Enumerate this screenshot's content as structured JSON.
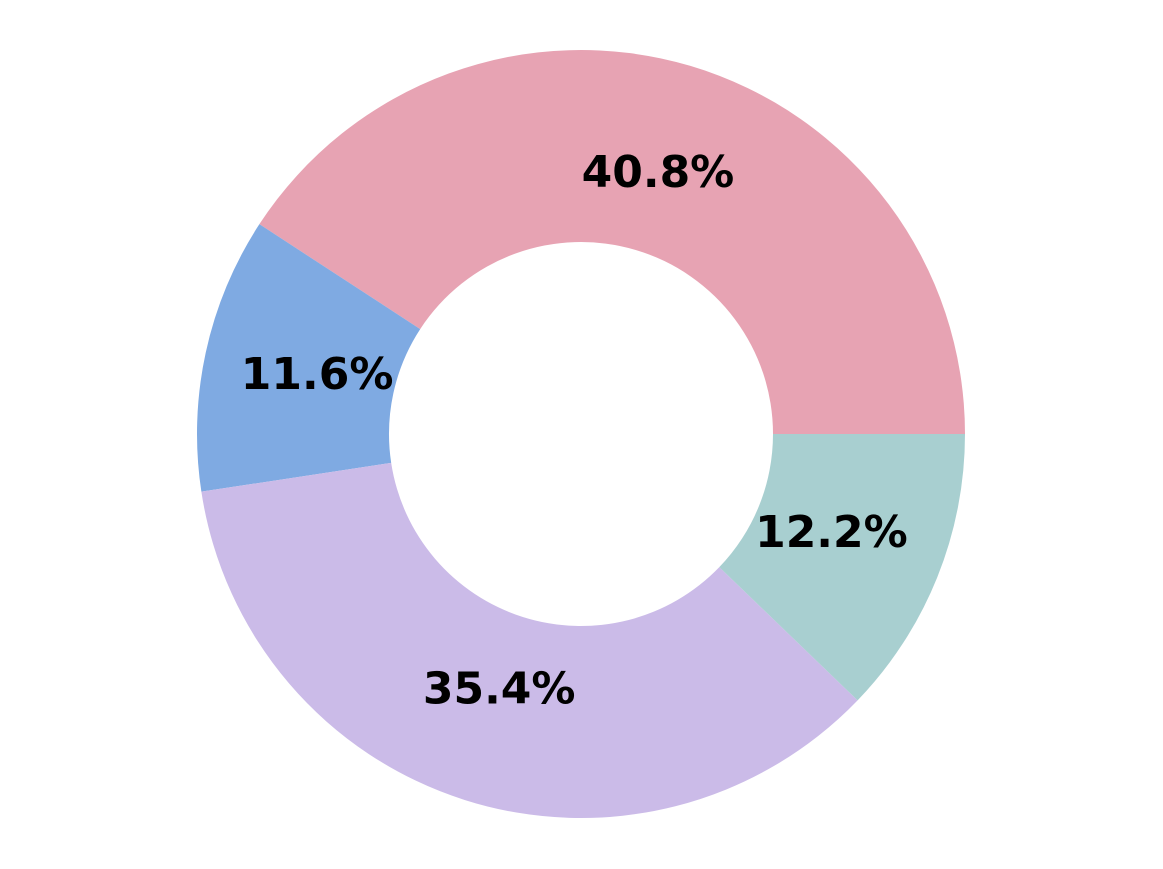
{
  "chart_data": {
    "type": "donut",
    "values": [
      40.8,
      11.6,
      35.4,
      12.2
    ],
    "value_labels": [
      "40.8%",
      "11.6%",
      "35.4%",
      "12.2%"
    ],
    "colors": [
      "#e7a3b3",
      "#7faae2",
      "#cbbbe8",
      "#a8cfd0"
    ]
  }
}
